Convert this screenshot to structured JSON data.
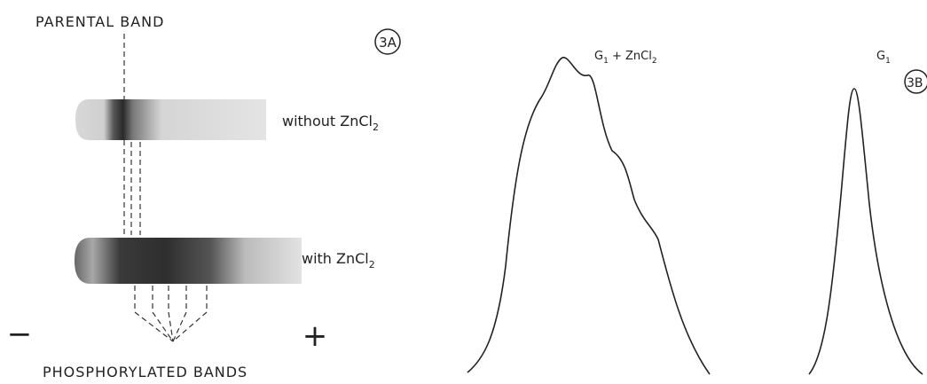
{
  "panel_a": {
    "label": "3A",
    "top_label": "PARENTAL BAND",
    "bottom_label": "PHOSPHORYLATED BANDS",
    "lanes": [
      {
        "text": "without ZnCl",
        "subscript": "2"
      },
      {
        "text": "with ZnCl",
        "subscript": "2"
      }
    ],
    "minus": "−",
    "plus": "+"
  },
  "panel_b": {
    "label": "3B",
    "traces": [
      {
        "text": "G",
        "subscript": "1",
        "rest": " + ZnCl",
        "rest_subscript": "2"
      },
      {
        "text": "G",
        "subscript": "1"
      }
    ]
  }
}
